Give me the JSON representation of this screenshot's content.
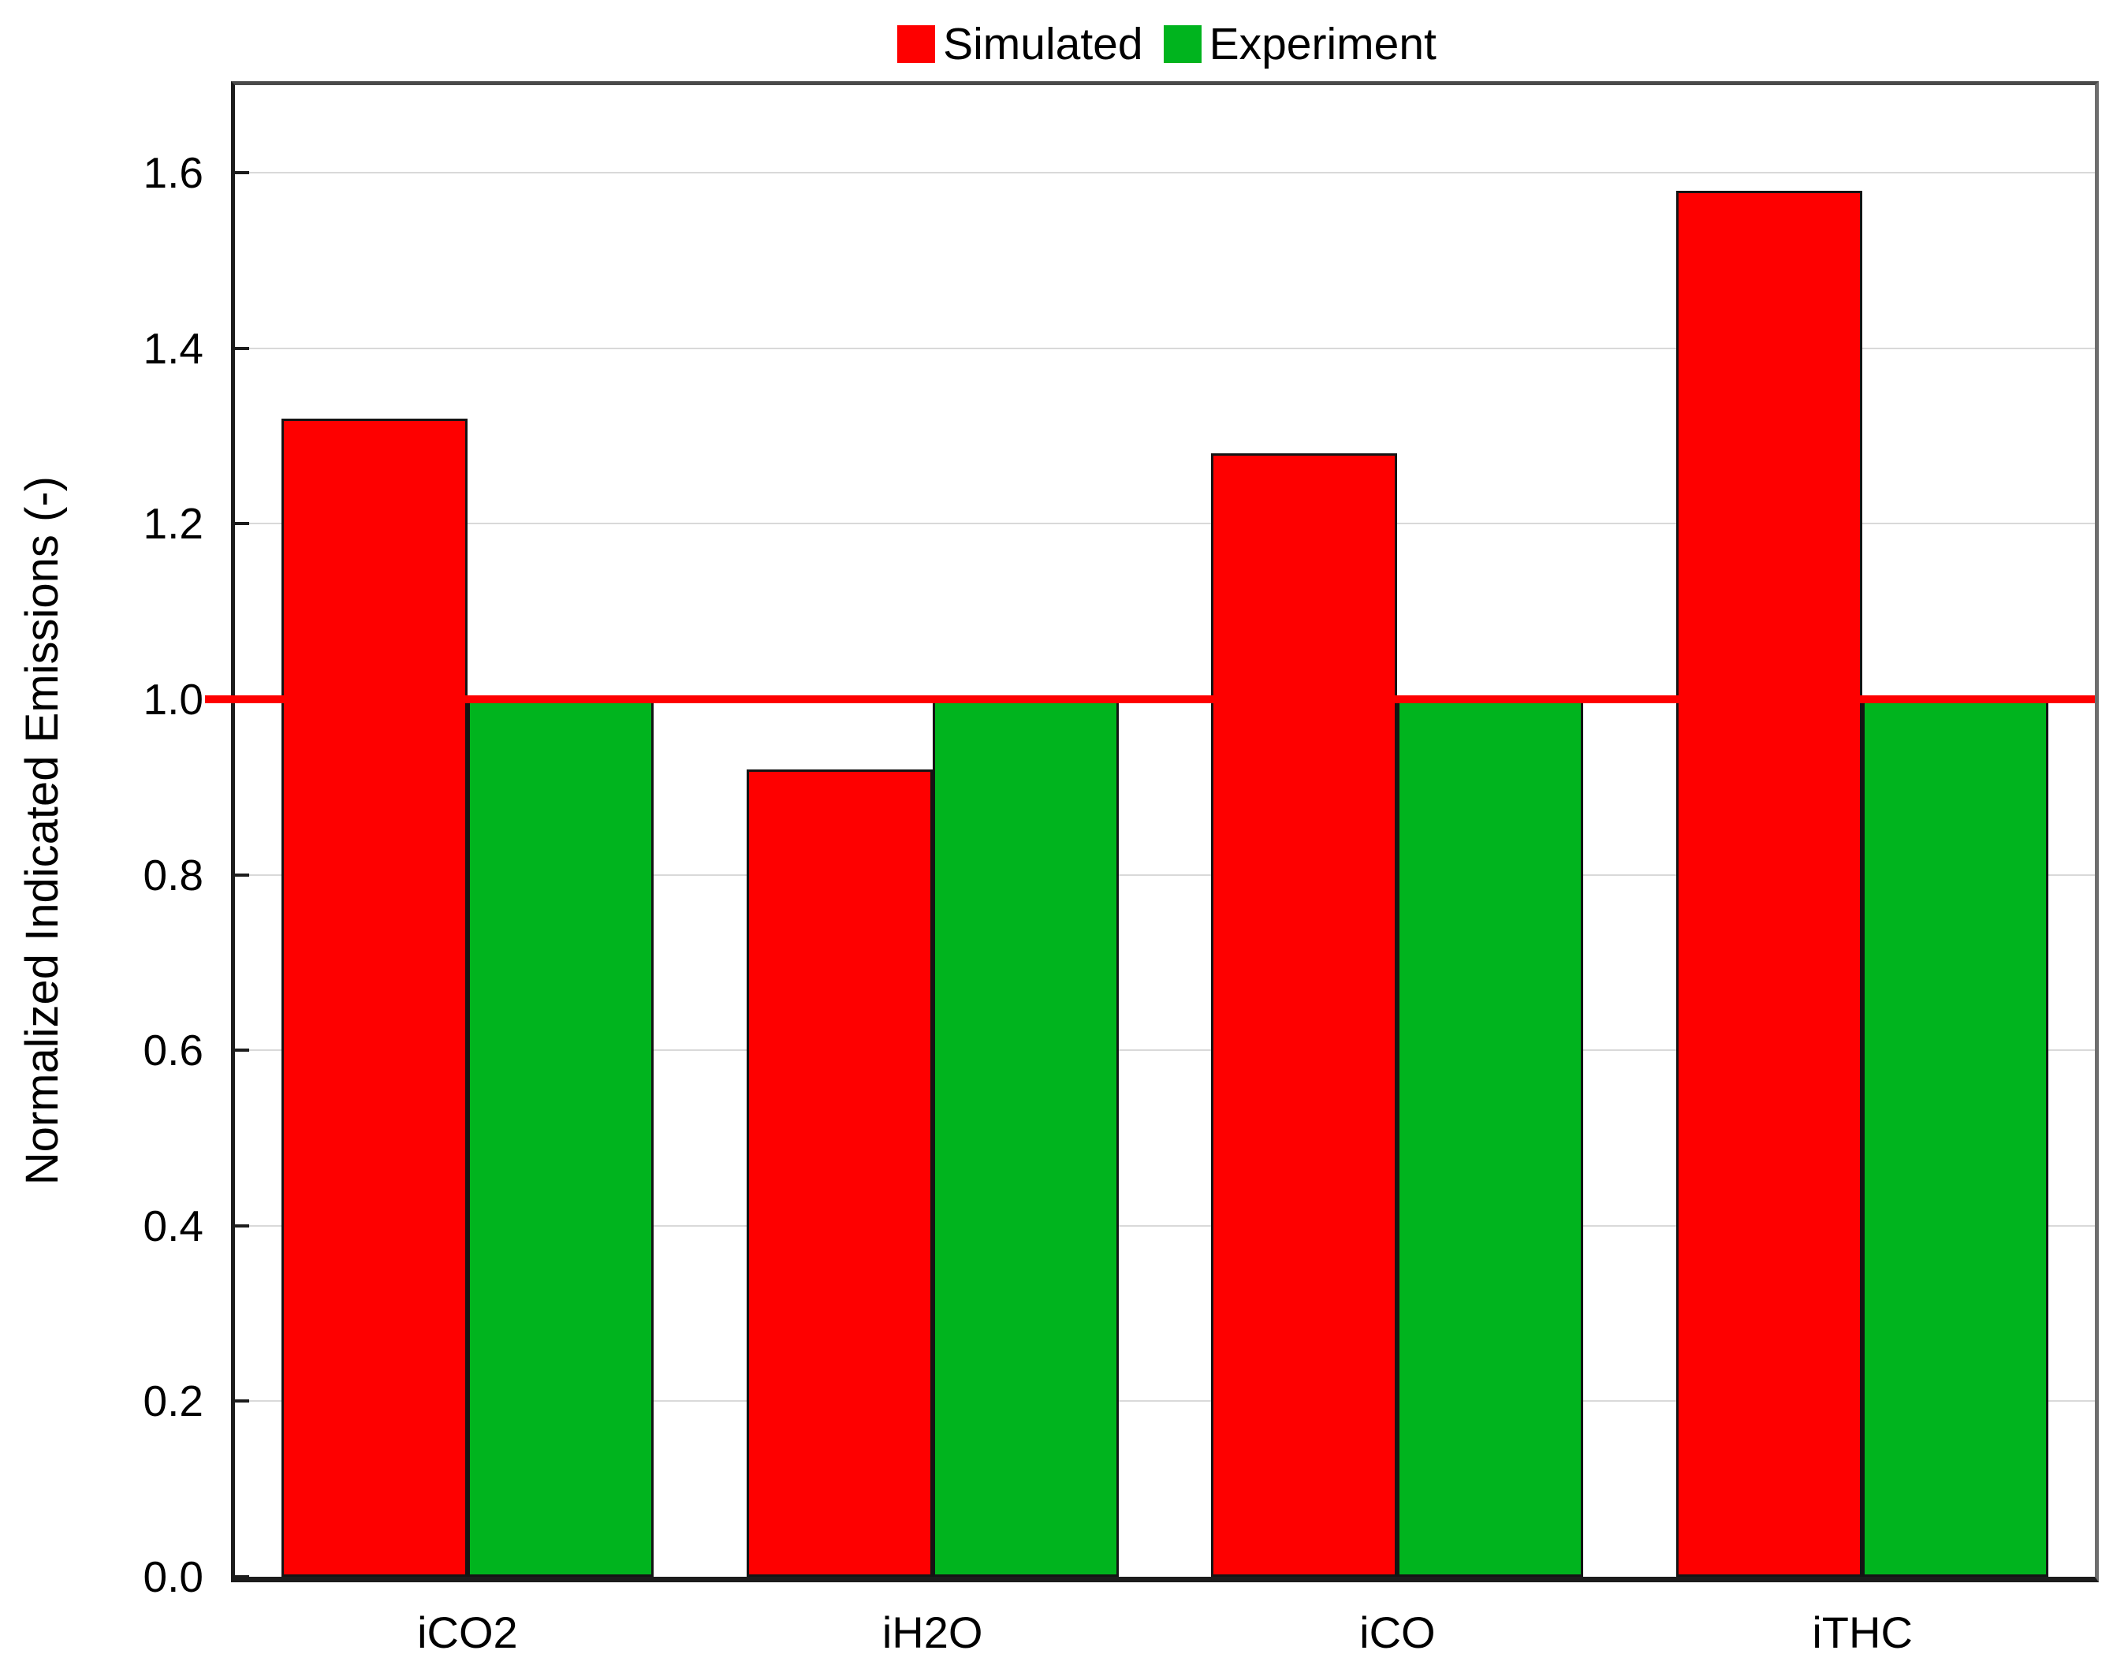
{
  "figure": {
    "background_color": "#ffffff"
  },
  "chart_data": {
    "type": "bar",
    "title": "",
    "categories": [
      "iCO2",
      "iH2O",
      "iCO",
      "iTHC"
    ],
    "series": [
      {
        "name": "Simulated",
        "color": "#fe0000",
        "values": [
          1.32,
          0.92,
          1.28,
          1.58
        ]
      },
      {
        "name": "Experiment",
        "color": "#00b41e",
        "values": [
          1.0,
          1.0,
          1.0,
          1.0
        ]
      }
    ],
    "xlabel": "",
    "ylabel": "Normalized Indicated Emissions (-)",
    "ylim": [
      0.0,
      1.7
    ],
    "yticks": [
      0.0,
      0.2,
      0.4,
      0.6,
      0.8,
      1.0,
      1.2,
      1.4,
      1.6
    ],
    "ytick_labels": [
      "0.0",
      "0.2",
      "0.4",
      "0.6",
      "0.8",
      "1.0",
      "1.2",
      "1.4",
      "1.6"
    ],
    "grid": "horizontal",
    "gridline_color": "#d9d9d9",
    "reference_line": {
      "y": 1.0,
      "color": "#fe0000"
    },
    "bar_edge_color": "#141414",
    "legend_position": "top-center"
  }
}
